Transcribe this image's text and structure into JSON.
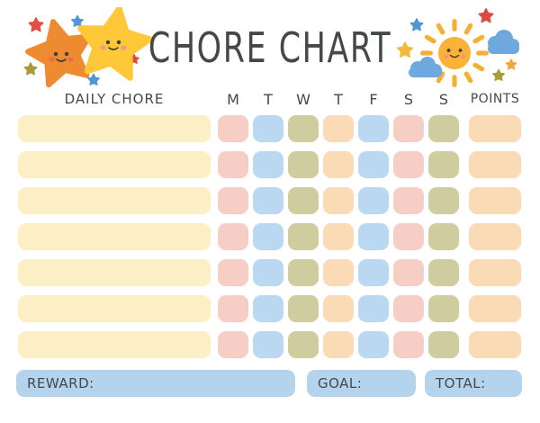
{
  "title": "CHORE CHART",
  "table": {
    "daily_chore_header": "DAILY CHORE",
    "days": [
      "M",
      "T",
      "W",
      "T",
      "F",
      "S",
      "S"
    ],
    "points_header": "POINTS",
    "row_count": 7,
    "day_colors": [
      "pink",
      "blue",
      "olive",
      "peach",
      "blue",
      "pink",
      "olive"
    ],
    "points_color": "peach",
    "cell_values": ""
  },
  "footer": {
    "reward_label": "REWARD:",
    "goal_label": "GOAL:",
    "total_label": "TOTAL:",
    "reward_value": "",
    "goal_value": "",
    "total_value": ""
  },
  "colors": {
    "text": "#45484B",
    "chore-yellow": "#FCEFC5",
    "pink": "#F7CEC6",
    "blue": "#BAD8F1",
    "olive": "#CFCCA0",
    "peach": "#FBDAB6",
    "footer-blue": "#B4D4EE",
    "star-orange": "#EE8A2F",
    "star-yellow": "#FFC838",
    "sun-yellow": "#FBB236",
    "cloud-blue": "#6FA8DC",
    "mini-red": "#DC4B41",
    "mini-blue": "#4F96D2",
    "mini-olive": "#A89B3B",
    "mini-gold": "#F5B73D"
  },
  "decorations": {
    "left": "smiling-stars",
    "right": "smiling-sun-with-clouds"
  }
}
